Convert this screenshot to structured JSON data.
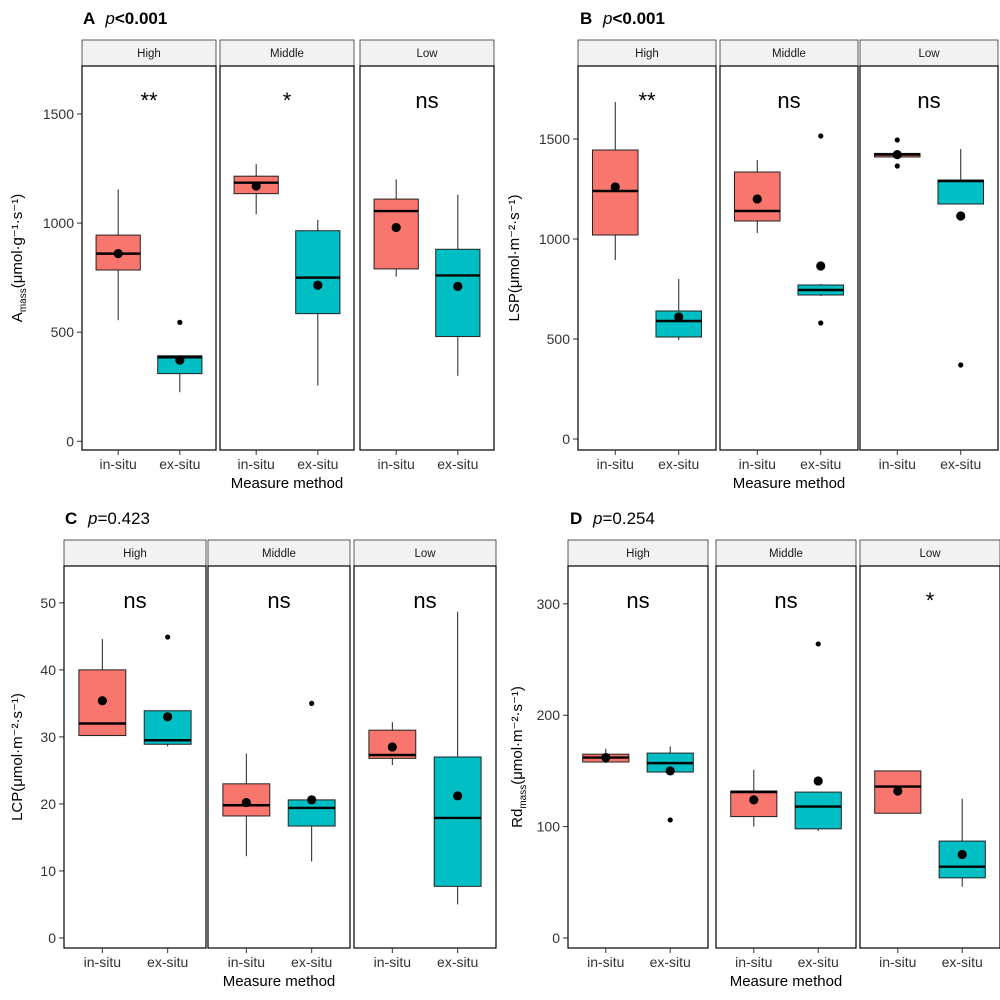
{
  "chart_data": [
    {
      "type": "box",
      "panel_label": "A",
      "p_prefix": "p",
      "p_value": "<0.001",
      "p_bold": true,
      "ylabel_main": "A",
      "ylabel_sub": "mass",
      "ylabel_unit": "(μmol·g⁻¹·s⁻¹)",
      "ylim": [
        -40,
        1720
      ],
      "yticks": [
        0,
        500,
        1000,
        1500
      ],
      "xlabel": "Measure method",
      "categories": [
        "in-situ",
        "ex-situ"
      ],
      "facets": [
        {
          "strip": "High",
          "significance": "**",
          "boxes": [
            {
              "method": "in-situ",
              "min": 555,
              "q1": 785,
              "median": 860,
              "q3": 945,
              "max": 1155,
              "mean": 860,
              "outliers": []
            },
            {
              "method": "ex-situ",
              "min": 225,
              "q1": 310,
              "median": 385,
              "q3": 392,
              "max": 392,
              "mean": 372,
              "outliers": [
                545
              ]
            }
          ]
        },
        {
          "strip": "Middle",
          "significance": "*",
          "boxes": [
            {
              "method": "in-situ",
              "min": 1040,
              "q1": 1135,
              "median": 1185,
              "q3": 1215,
              "max": 1270,
              "mean": 1170,
              "outliers": []
            },
            {
              "method": "ex-situ",
              "min": 255,
              "q1": 585,
              "median": 750,
              "q3": 965,
              "max": 1015,
              "mean": 715,
              "outliers": []
            }
          ]
        },
        {
          "strip": "Low",
          "significance": "ns",
          "boxes": [
            {
              "method": "in-situ",
              "min": 755,
              "q1": 790,
              "median": 1055,
              "q3": 1110,
              "max": 1200,
              "mean": 980,
              "outliers": []
            },
            {
              "method": "ex-situ",
              "min": 300,
              "q1": 480,
              "median": 760,
              "q3": 880,
              "max": 1130,
              "mean": 710,
              "outliers": []
            }
          ]
        }
      ]
    },
    {
      "type": "box",
      "panel_label": "B",
      "p_prefix": "p",
      "p_value": "<0.001",
      "p_bold": true,
      "ylabel_main": "LSP",
      "ylabel_sub": "",
      "ylabel_unit": "(μmol·m⁻²·s⁻¹)",
      "ylim": [
        -55,
        1865
      ],
      "yticks": [
        0,
        500,
        1000,
        1500
      ],
      "xlabel": "Measure method",
      "categories": [
        "in-situ",
        "ex-situ"
      ],
      "facets": [
        {
          "strip": "High",
          "significance": "**",
          "boxes": [
            {
              "method": "in-situ",
              "min": 895,
              "q1": 1020,
              "median": 1240,
              "q3": 1445,
              "max": 1685,
              "mean": 1260,
              "outliers": []
            },
            {
              "method": "ex-situ",
              "min": 495,
              "q1": 510,
              "median": 590,
              "q3": 640,
              "max": 800,
              "mean": 610,
              "outliers": []
            }
          ]
        },
        {
          "strip": "Middle",
          "significance": "ns",
          "boxes": [
            {
              "method": "in-situ",
              "min": 1030,
              "q1": 1090,
              "median": 1140,
              "q3": 1335,
              "max": 1395,
              "mean": 1200,
              "outliers": []
            },
            {
              "method": "ex-situ",
              "min": 715,
              "q1": 720,
              "median": 745,
              "q3": 770,
              "max": 775,
              "mean": 865,
              "outliers": [
                580,
                1515
              ]
            }
          ]
        },
        {
          "strip": "Low",
          "significance": "ns",
          "boxes": [
            {
              "method": "in-situ",
              "min": 1410,
              "q1": 1410,
              "median": 1422,
              "q3": 1428,
              "max": 1430,
              "mean": 1422,
              "outliers": [
                1365,
                1495
              ]
            },
            {
              "method": "ex-situ",
              "min": 1175,
              "q1": 1175,
              "median": 1290,
              "q3": 1295,
              "max": 1450,
              "mean": 1115,
              "outliers": [
                370
              ]
            }
          ]
        }
      ]
    },
    {
      "type": "box",
      "panel_label": "C",
      "p_prefix": "p",
      "p_value": "=0.423",
      "p_bold": false,
      "ylabel_main": "LCP",
      "ylabel_sub": "",
      "ylabel_unit": "(μmol·m⁻²·s⁻¹)",
      "ylim": [
        -1.5,
        55.5
      ],
      "yticks": [
        0,
        10,
        20,
        30,
        40,
        50
      ],
      "xlabel": "Measure method",
      "categories": [
        "in-situ",
        "ex-situ"
      ],
      "facets": [
        {
          "strip": "High",
          "significance": "ns",
          "boxes": [
            {
              "method": "in-situ",
              "min": 30.2,
              "q1": 30.2,
              "median": 32,
              "q3": 40,
              "max": 44.6,
              "mean": 35.4,
              "outliers": []
            },
            {
              "method": "ex-situ",
              "min": 28.6,
              "q1": 28.9,
              "median": 29.5,
              "q3": 33.9,
              "max": 33.9,
              "mean": 33,
              "outliers": [
                44.9
              ]
            }
          ]
        },
        {
          "strip": "Middle",
          "significance": "ns",
          "boxes": [
            {
              "method": "in-situ",
              "min": 12.2,
              "q1": 18.2,
              "median": 19.8,
              "q3": 23,
              "max": 27.5,
              "mean": 20.2,
              "outliers": []
            },
            {
              "method": "ex-situ",
              "min": 11.4,
              "q1": 16.7,
              "median": 19.4,
              "q3": 20.6,
              "max": 20.6,
              "mean": 20.6,
              "outliers": [
                35
              ]
            }
          ]
        },
        {
          "strip": "Low",
          "significance": "ns",
          "boxes": [
            {
              "method": "in-situ",
              "min": 25.8,
              "q1": 26.8,
              "median": 27.3,
              "q3": 31,
              "max": 32.2,
              "mean": 28.5,
              "outliers": []
            },
            {
              "method": "ex-situ",
              "min": 5,
              "q1": 7.7,
              "median": 17.9,
              "q3": 27,
              "max": 48.7,
              "mean": 21.2,
              "outliers": []
            }
          ]
        }
      ]
    },
    {
      "type": "box",
      "panel_label": "D",
      "p_prefix": "p",
      "p_value": "=0.254",
      "p_bold": false,
      "ylabel_main": "Rd",
      "ylabel_sub": "mass",
      "ylabel_unit": "(μmol·m⁻²·s⁻¹)",
      "ylim": [
        -9,
        334
      ],
      "yticks": [
        0,
        100,
        200,
        300
      ],
      "xlabel": "Measure method",
      "categories": [
        "in-situ",
        "ex-situ"
      ],
      "facets": [
        {
          "strip": "High",
          "significance": "ns",
          "boxes": [
            {
              "method": "in-situ",
              "min": 157,
              "q1": 158,
              "median": 162,
              "q3": 165,
              "max": 170,
              "mean": 162,
              "outliers": []
            },
            {
              "method": "ex-situ",
              "min": 147,
              "q1": 149,
              "median": 157,
              "q3": 166,
              "max": 172,
              "mean": 150,
              "outliers": [
                106
              ]
            }
          ]
        },
        {
          "strip": "Middle",
          "significance": "ns",
          "boxes": [
            {
              "method": "in-situ",
              "min": 100,
              "q1": 109,
              "median": 131,
              "q3": 132,
              "max": 151,
              "mean": 124,
              "outliers": []
            },
            {
              "method": "ex-situ",
              "min": 96,
              "q1": 98,
              "median": 118,
              "q3": 131,
              "max": 131,
              "mean": 141,
              "outliers": [
                264
              ]
            }
          ]
        },
        {
          "strip": "Low",
          "significance": "*",
          "boxes": [
            {
              "method": "in-situ",
              "min": 112,
              "q1": 112,
              "median": 136,
              "q3": 150,
              "max": 150,
              "mean": 132,
              "outliers": []
            },
            {
              "method": "ex-situ",
              "min": 46,
              "q1": 54,
              "median": 64,
              "q3": 87,
              "max": 125,
              "mean": 75,
              "outliers": []
            }
          ]
        }
      ]
    }
  ],
  "colors": {
    "in_situ": "#F8766D",
    "ex_situ": "#00BFC4",
    "strip_fill": "#F2F2F2",
    "frame": "#000000"
  }
}
